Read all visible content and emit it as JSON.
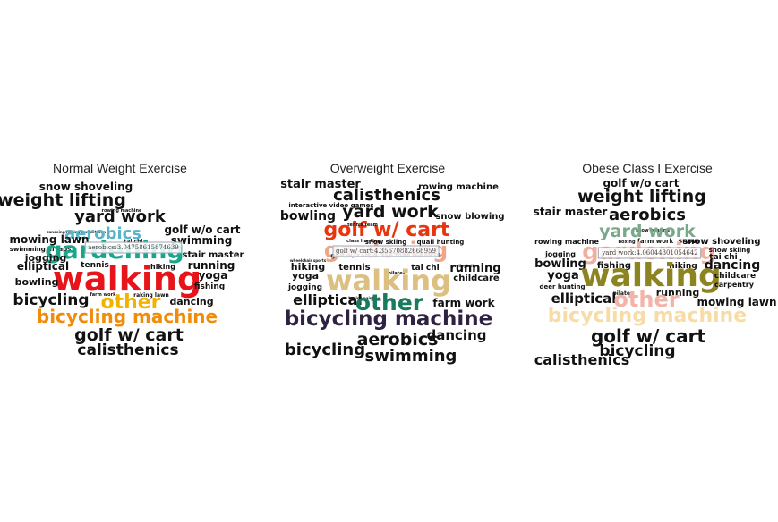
{
  "chart_data": [
    {
      "type": "wordcloud",
      "title": "Normal Weight Exercise",
      "words": [
        {
          "text": "snow shoveling",
          "color": "#111111"
        },
        {
          "text": "weight lifting",
          "color": "#111111"
        },
        {
          "text": "rowing machine",
          "color": "#111111"
        },
        {
          "text": "yard work",
          "color": "#111111"
        },
        {
          "text": "golf w/o cart",
          "color": "#111111"
        },
        {
          "text": "canoeing/rowing competition",
          "color": "#111111"
        },
        {
          "text": "aerobics",
          "color": "#5ab4c8"
        },
        {
          "text": "mowing lawn",
          "color": "#111111"
        },
        {
          "text": "swimming",
          "color": "#111111"
        },
        {
          "text": "tai chi",
          "color": "#111111"
        },
        {
          "text": "swimming in laps",
          "color": "#111111"
        },
        {
          "text": "gardening",
          "color": "#1aa68a"
        },
        {
          "text": "jogging",
          "color": "#111111"
        },
        {
          "text": "stair master",
          "color": "#111111"
        },
        {
          "text": "elliptical",
          "color": "#111111"
        },
        {
          "text": "tennis",
          "color": "#111111"
        },
        {
          "text": "hiking",
          "color": "#111111"
        },
        {
          "text": "running",
          "color": "#111111"
        },
        {
          "text": "walking",
          "color": "#e8141b"
        },
        {
          "text": "yoga",
          "color": "#111111"
        },
        {
          "text": "bowling",
          "color": "#111111"
        },
        {
          "text": "fishing",
          "color": "#111111"
        },
        {
          "text": "raking lawn",
          "color": "#111111"
        },
        {
          "text": "farm work",
          "color": "#111111"
        },
        {
          "text": "bicycling",
          "color": "#111111"
        },
        {
          "text": "other",
          "color": "#f0b400"
        },
        {
          "text": "dancing",
          "color": "#111111"
        },
        {
          "text": "bicycling machine",
          "color": "#f08c0a"
        },
        {
          "text": "golf w/ cart",
          "color": "#111111"
        },
        {
          "text": "calisthenics",
          "color": "#111111"
        }
      ],
      "tooltip": "aerobics:3.04758615874639"
    },
    {
      "type": "wordcloud",
      "title": "Overweight Exercise",
      "words": [
        {
          "text": "stair master",
          "color": "#111111"
        },
        {
          "text": "rowing machine",
          "color": "#111111"
        },
        {
          "text": "calisthenics",
          "color": "#111111"
        },
        {
          "text": "interactive video games",
          "color": "#111111"
        },
        {
          "text": "bowling",
          "color": "#111111"
        },
        {
          "text": "yard work",
          "color": "#111111"
        },
        {
          "text": "snow blowing",
          "color": "#111111"
        },
        {
          "text": "golf w/ cart",
          "color": "#e8350e"
        },
        {
          "text": "tennis team",
          "color": "#111111"
        },
        {
          "text": "gardening",
          "color": "#f0a488"
        },
        {
          "text": "class hunting",
          "color": "#111111"
        },
        {
          "text": "snow skiing",
          "color": "#111111"
        },
        {
          "text": "quail hunting",
          "color": "#111111"
        },
        {
          "text": "golf w/ cart:4.35670882668959",
          "color": "#333333"
        },
        {
          "text": "wheelchair sports",
          "color": "#111111"
        },
        {
          "text": "hiking",
          "color": "#111111"
        },
        {
          "text": "tennis",
          "color": "#111111"
        },
        {
          "text": "tai chi",
          "color": "#111111"
        },
        {
          "text": "running",
          "color": "#111111"
        },
        {
          "text": "yoga",
          "color": "#111111"
        },
        {
          "text": "volleyball",
          "color": "#111111"
        },
        {
          "text": "pilates",
          "color": "#111111"
        },
        {
          "text": "walking",
          "color": "#dcc081"
        },
        {
          "text": "childcare",
          "color": "#111111"
        },
        {
          "text": "jogging",
          "color": "#111111"
        },
        {
          "text": "elliptical",
          "color": "#111111"
        },
        {
          "text": "boxing painting",
          "color": "#111111"
        },
        {
          "text": "other",
          "color": "#1a7a5e"
        },
        {
          "text": "farm work",
          "color": "#111111"
        },
        {
          "text": "bicycling machine",
          "color": "#2e2242"
        },
        {
          "text": "aerobics",
          "color": "#111111"
        },
        {
          "text": "dancing",
          "color": "#111111"
        },
        {
          "text": "bicycling",
          "color": "#111111"
        },
        {
          "text": "swimming",
          "color": "#111111"
        }
      ],
      "tooltip": "golf w/ cart:4.35670882668959"
    },
    {
      "type": "wordcloud",
      "title": "Obese Class I Exercise",
      "words": [
        {
          "text": "golf w/o cart",
          "color": "#111111"
        },
        {
          "text": "weight lifting",
          "color": "#111111"
        },
        {
          "text": "stair master",
          "color": "#111111"
        },
        {
          "text": "aerobics",
          "color": "#111111"
        },
        {
          "text": "snow boating",
          "color": "#111111"
        },
        {
          "text": "yard work",
          "color": "#7aa88a"
        },
        {
          "text": "rowing machine",
          "color": "#111111"
        },
        {
          "text": "boxing",
          "color": "#111111"
        },
        {
          "text": "farm work",
          "color": "#111111"
        },
        {
          "text": "snow",
          "color": "#111111"
        },
        {
          "text": "snow shoveling",
          "color": "#111111"
        },
        {
          "text": "gardening",
          "color": "#f0b0a0"
        },
        {
          "text": "jogging",
          "color": "#111111"
        },
        {
          "text": "snow skiing",
          "color": "#111111"
        },
        {
          "text": "tai chi",
          "color": "#111111"
        },
        {
          "text": "bowling",
          "color": "#111111"
        },
        {
          "text": "fishing",
          "color": "#111111"
        },
        {
          "text": "hiking",
          "color": "#111111"
        },
        {
          "text": "dancing",
          "color": "#111111"
        },
        {
          "text": "yoga",
          "color": "#111111"
        },
        {
          "text": "walking",
          "color": "#8c8420"
        },
        {
          "text": "childcare",
          "color": "#111111"
        },
        {
          "text": "deer hunting",
          "color": "#111111"
        },
        {
          "text": "pilates",
          "color": "#111111"
        },
        {
          "text": "running",
          "color": "#111111"
        },
        {
          "text": "carpentry",
          "color": "#111111"
        },
        {
          "text": "elliptical",
          "color": "#111111"
        },
        {
          "text": "other",
          "color": "#f2b4a8"
        },
        {
          "text": "mowing lawn",
          "color": "#111111"
        },
        {
          "text": "bicycling machine",
          "color": "#f8dca6"
        },
        {
          "text": "golf w/ cart",
          "color": "#111111"
        },
        {
          "text": "bicycling",
          "color": "#111111"
        },
        {
          "text": "calisthenics",
          "color": "#111111"
        }
      ],
      "tooltip": "yard work:4.06044301054642"
    }
  ]
}
